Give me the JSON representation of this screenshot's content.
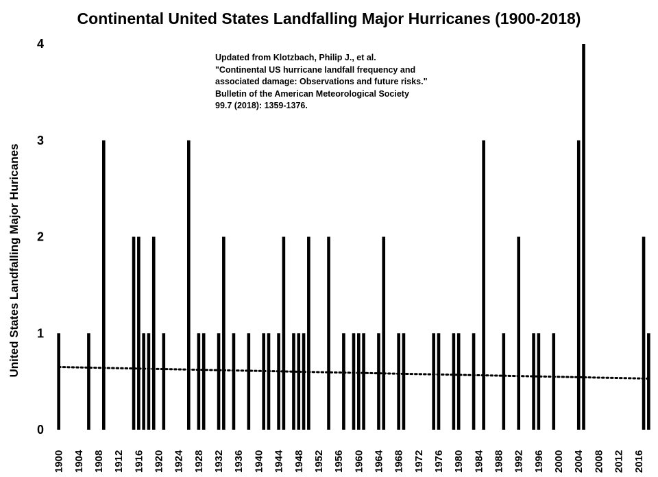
{
  "chart_data": {
    "type": "bar",
    "title": "Continental United States Landfalling Major Hurricanes (1900-2018)",
    "ylabel": "United States Landfalling Major Huricanes",
    "xlabel": "",
    "ylim": [
      0,
      4
    ],
    "yticks": [
      "0",
      "1",
      "2",
      "3",
      "4"
    ],
    "x_tick_labels": [
      "1900",
      "1904",
      "1908",
      "1912",
      "1916",
      "1920",
      "1924",
      "1928",
      "1932",
      "1936",
      "1940",
      "1944",
      "1948",
      "1952",
      "1956",
      "1960",
      "1964",
      "1968",
      "1972",
      "1976",
      "1980",
      "1984",
      "1988",
      "1992",
      "1996",
      "2000",
      "2004",
      "2008",
      "2012",
      "2016"
    ],
    "years": [
      1900,
      1901,
      1902,
      1903,
      1904,
      1905,
      1906,
      1907,
      1908,
      1909,
      1910,
      1911,
      1912,
      1913,
      1914,
      1915,
      1916,
      1917,
      1918,
      1919,
      1920,
      1921,
      1922,
      1923,
      1924,
      1925,
      1926,
      1927,
      1928,
      1929,
      1930,
      1931,
      1932,
      1933,
      1934,
      1935,
      1936,
      1937,
      1938,
      1939,
      1940,
      1941,
      1942,
      1943,
      1944,
      1945,
      1946,
      1947,
      1948,
      1949,
      1950,
      1951,
      1952,
      1953,
      1954,
      1955,
      1956,
      1957,
      1958,
      1959,
      1960,
      1961,
      1962,
      1963,
      1964,
      1965,
      1966,
      1967,
      1968,
      1969,
      1970,
      1971,
      1972,
      1973,
      1974,
      1975,
      1976,
      1977,
      1978,
      1979,
      1980,
      1981,
      1982,
      1983,
      1984,
      1985,
      1986,
      1987,
      1988,
      1989,
      1990,
      1991,
      1992,
      1993,
      1994,
      1995,
      1996,
      1997,
      1998,
      1999,
      2000,
      2001,
      2002,
      2003,
      2004,
      2005,
      2006,
      2007,
      2008,
      2009,
      2010,
      2011,
      2012,
      2013,
      2014,
      2015,
      2016,
      2017,
      2018
    ],
    "values": [
      1,
      0,
      0,
      0,
      0,
      0,
      1,
      0,
      0,
      3,
      0,
      0,
      0,
      0,
      0,
      2,
      2,
      1,
      1,
      2,
      0,
      1,
      0,
      0,
      0,
      0,
      3,
      0,
      1,
      1,
      0,
      0,
      1,
      2,
      0,
      1,
      0,
      0,
      1,
      0,
      0,
      1,
      1,
      0,
      1,
      2,
      0,
      1,
      1,
      1,
      2,
      0,
      0,
      0,
      2,
      0,
      0,
      1,
      0,
      1,
      1,
      1,
      0,
      0,
      1,
      2,
      0,
      0,
      1,
      1,
      0,
      0,
      0,
      0,
      0,
      1,
      1,
      0,
      0,
      1,
      1,
      0,
      0,
      1,
      0,
      3,
      0,
      0,
      0,
      1,
      0,
      0,
      2,
      0,
      0,
      1,
      1,
      0,
      0,
      1,
      0,
      0,
      0,
      0,
      3,
      4,
      0,
      0,
      0,
      0,
      0,
      0,
      0,
      0,
      0,
      0,
      0,
      2,
      1
    ],
    "trendline": {
      "style": "dotted",
      "start_value": 0.65,
      "end_value": 0.53
    },
    "annotation": [
      "Updated from Klotzbach, Philip J., et al.",
      "\"Continental US hurricane landfall frequency and",
      "associated damage: Observations and future risks.\"",
      "Bulletin of the American Meteorological Society",
      "99.7 (2018): 1359-1376."
    ],
    "grid": false,
    "legend": "none",
    "colors": {
      "bar": "#000000",
      "trend": "#000000",
      "background": "#ffffff"
    }
  }
}
